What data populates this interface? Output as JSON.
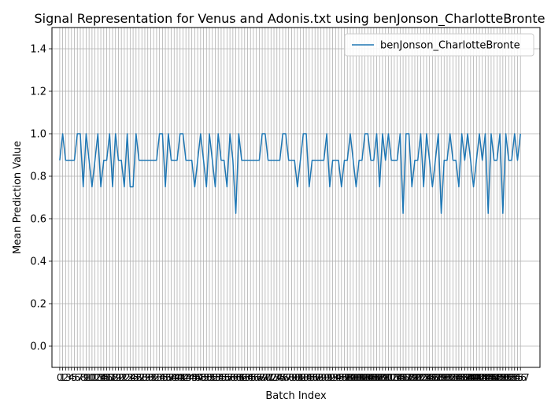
{
  "chart_data": {
    "type": "line",
    "title": "Signal Representation for Venus and Adonis.txt using benJonson_CharlotteBronte",
    "xlabel": "Batch Index",
    "ylabel": "Mean Prediction Value",
    "xlim": [
      -2.65,
      163.65
    ],
    "ylim": [
      -0.1,
      1.5
    ],
    "yticks": [
      0.0,
      0.2,
      0.4,
      0.6,
      0.8,
      1.0,
      1.2,
      1.4
    ],
    "xticks_every_integer": true,
    "grid": true,
    "legend_position": "upper right",
    "series": [
      {
        "name": "benJonson_CharlotteBronte",
        "color": "#1f77b4",
        "values": [
          0.875,
          1.0,
          0.875,
          0.875,
          0.875,
          0.875,
          1.0,
          1.0,
          0.75,
          1.0,
          0.875,
          0.75,
          0.875,
          1.0,
          0.75,
          0.875,
          0.875,
          1.0,
          0.75,
          1.0,
          0.875,
          0.875,
          0.75,
          1.0,
          0.75,
          0.75,
          1.0,
          0.875,
          0.875,
          0.875,
          0.875,
          0.875,
          0.875,
          0.875,
          1.0,
          1.0,
          0.75,
          1.0,
          0.875,
          0.875,
          0.875,
          1.0,
          1.0,
          0.875,
          0.875,
          0.875,
          0.75,
          0.875,
          1.0,
          0.875,
          0.75,
          1.0,
          0.875,
          0.75,
          1.0,
          0.875,
          0.875,
          0.75,
          1.0,
          0.875,
          0.625,
          1.0,
          0.875,
          0.875,
          0.875,
          0.875,
          0.875,
          0.875,
          0.875,
          1.0,
          1.0,
          0.875,
          0.875,
          0.875,
          0.875,
          0.875,
          1.0,
          1.0,
          0.875,
          0.875,
          0.875,
          0.75,
          0.875,
          1.0,
          1.0,
          0.75,
          0.875,
          0.875,
          0.875,
          0.875,
          0.875,
          1.0,
          0.75,
          0.875,
          0.875,
          0.875,
          0.75,
          0.875,
          0.875,
          1.0,
          0.875,
          0.75,
          0.875,
          0.875,
          1.0,
          1.0,
          0.875,
          0.875,
          1.0,
          0.75,
          1.0,
          0.875,
          1.0,
          0.875,
          0.875,
          0.875,
          1.0,
          0.625,
          1.0,
          1.0,
          0.75,
          0.875,
          0.875,
          1.0,
          0.75,
          1.0,
          0.875,
          0.75,
          0.875,
          1.0,
          0.625,
          0.875,
          0.875,
          1.0,
          0.875,
          0.875,
          0.75,
          1.0,
          0.875,
          1.0,
          0.875,
          0.75,
          0.875,
          1.0,
          0.875,
          1.0,
          0.625,
          1.0,
          0.875,
          0.875,
          1.0,
          0.625,
          1.0,
          0.875,
          0.875,
          1.0,
          0.875,
          1.0
        ]
      }
    ]
  }
}
